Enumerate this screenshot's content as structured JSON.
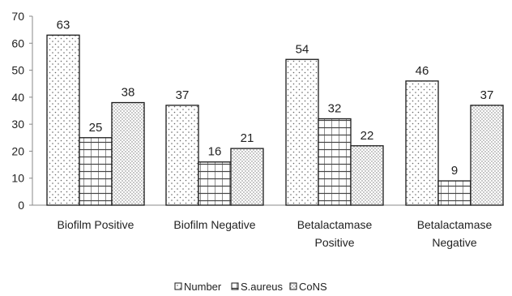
{
  "chart_data": {
    "type": "bar",
    "categories": [
      [
        "Biofilm  Positive"
      ],
      [
        "Biofilm Negative"
      ],
      [
        "Betalactamase",
        "Positive"
      ],
      [
        "Betalactamase",
        "Negative"
      ]
    ],
    "series": [
      {
        "name": "Number",
        "values": [
          63,
          37,
          54,
          46
        ],
        "pattern": "dots"
      },
      {
        "name": "S.aureus",
        "values": [
          25,
          16,
          32,
          9
        ],
        "pattern": "grid"
      },
      {
        "name": "CoNS",
        "values": [
          38,
          21,
          22,
          37
        ],
        "pattern": "dense-dots"
      }
    ],
    "ylim": [
      0,
      70
    ],
    "yticks": [
      "0",
      "10",
      "20",
      "30",
      "40",
      "50",
      "60",
      "70"
    ],
    "grid": false,
    "legend_position": "bottom",
    "colors": {
      "bar_stroke": "#1a1a1a",
      "pattern_ink": "#555555",
      "axis": "#888888"
    }
  }
}
